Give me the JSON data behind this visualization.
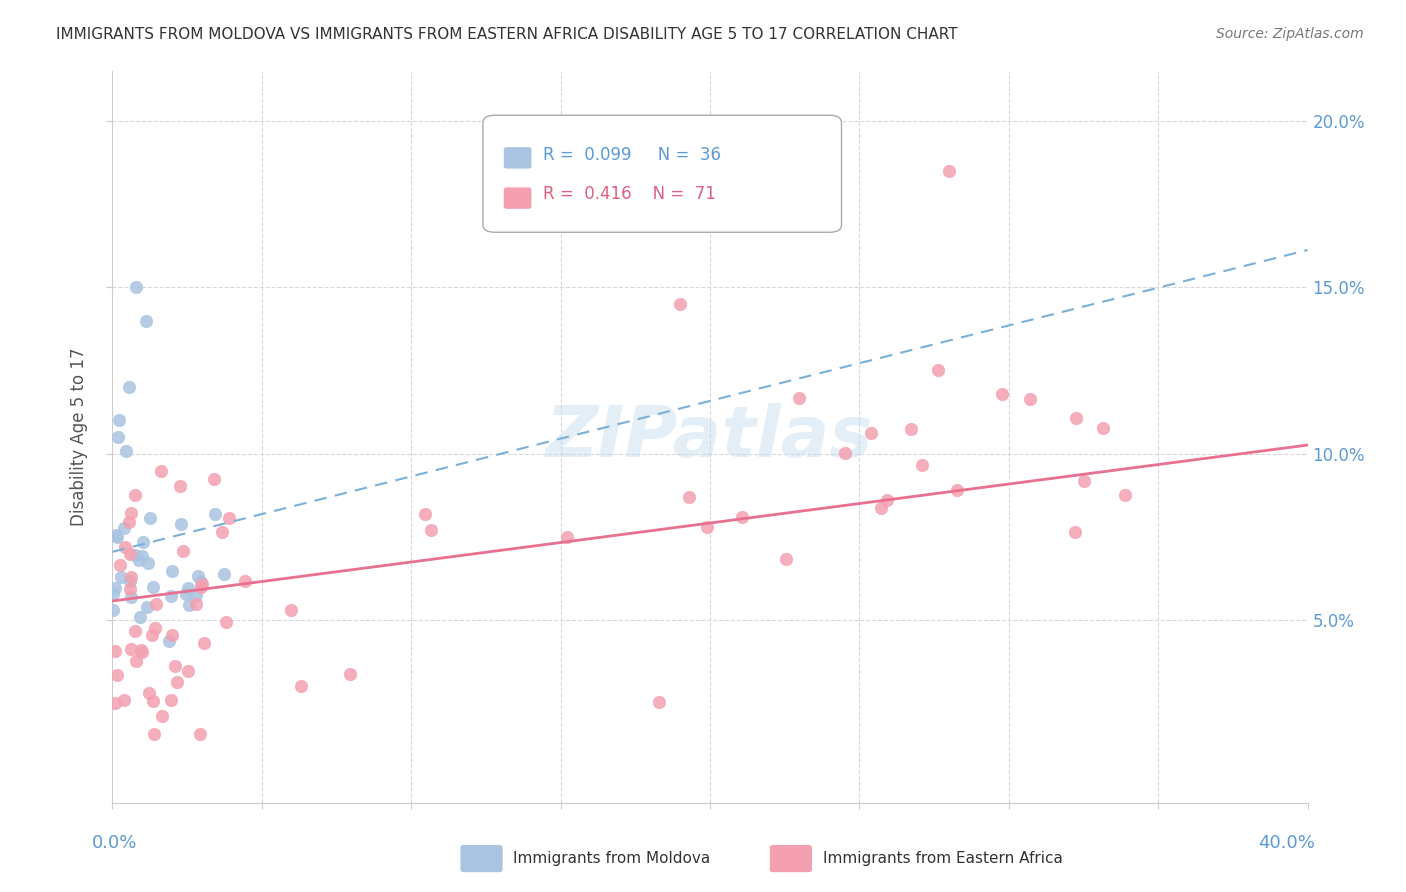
{
  "title": "IMMIGRANTS FROM MOLDOVA VS IMMIGRANTS FROM EASTERN AFRICA DISABILITY AGE 5 TO 17 CORRELATION CHART",
  "source": "Source: ZipAtlas.com",
  "ylabel": "Disability Age 5 to 17",
  "legend_moldova": "Immigrants from Moldova",
  "legend_eastern_africa": "Immigrants from Eastern Africa",
  "r_moldova": 0.099,
  "n_moldova": 36,
  "r_eastern_africa": 0.416,
  "n_eastern_africa": 71,
  "color_moldova": "#a8c4e0",
  "color_eastern_africa": "#f4a0b0",
  "trendline_moldova_color": "#7ab0d8",
  "trendline_eastern_africa_color": "#e87090",
  "background_color": "#ffffff",
  "grid_color": "#d8d8d8",
  "watermark": "ZIPatlas",
  "blue_text_color": "#5b9bd5",
  "pink_text_color": "#e06080"
}
